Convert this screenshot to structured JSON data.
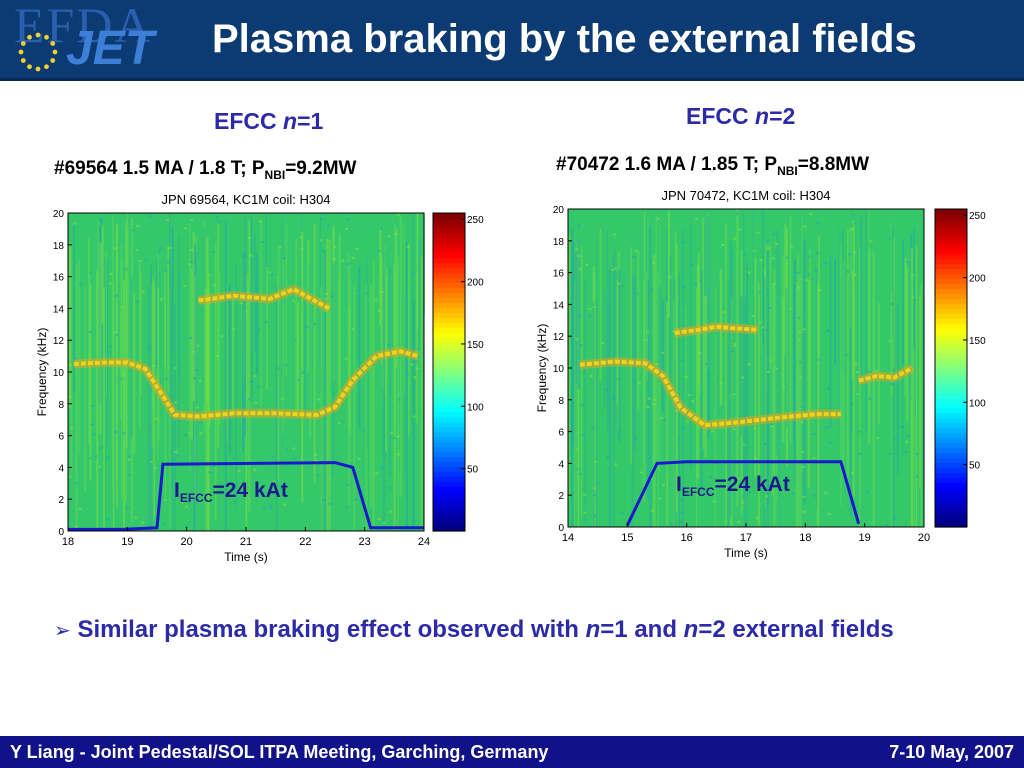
{
  "header": {
    "logo_efda_text": "EFDA",
    "logo_jet_text": "JET",
    "title": "Plasma braking by the external fields"
  },
  "left_panel": {
    "heading_prefix": "EFCC ",
    "heading_var": "n",
    "heading_suffix": "=1",
    "shot_prefix": "#69564 1.5 MA / 1.8 T; P",
    "shot_sub": "NBI",
    "shot_suffix": "=9.2MW",
    "efcc_label_main": "I",
    "efcc_label_sub": "EFCC",
    "efcc_label_suffix": "=24 kAt"
  },
  "right_panel": {
    "heading_prefix": "EFCC ",
    "heading_var": "n",
    "heading_suffix": "=2",
    "shot_prefix": "#70472 1.6 MA / 1.85 T; P",
    "shot_sub": "NBI",
    "shot_suffix": "=8.8MW",
    "efcc_label_main": "I",
    "efcc_label_sub": "EFCC",
    "efcc_label_suffix": "=24 kAt"
  },
  "chart_data": [
    {
      "type": "heatmap",
      "title": "JPN 69564, KC1M coil: H304",
      "xlabel": "Time (s)",
      "ylabel": "Frequency (kHz)",
      "xlim": [
        18,
        24
      ],
      "ylim": [
        0,
        20
      ],
      "xticks": [
        18,
        19,
        20,
        21,
        22,
        23,
        24
      ],
      "yticks": [
        0,
        2,
        4,
        6,
        8,
        10,
        12,
        14,
        16,
        18,
        20
      ],
      "colorbar": {
        "ticks": [
          50,
          100,
          150,
          200,
          250
        ],
        "range": [
          0,
          255
        ]
      },
      "series": [
        {
          "x": [
            18.1,
            18.6,
            19.0,
            19.3,
            19.6,
            19.8,
            20.2,
            20.8,
            21.5,
            22.2,
            22.5,
            22.8,
            23.2,
            23.6,
            23.9
          ],
          "y": [
            10.5,
            10.6,
            10.6,
            10.2,
            8.5,
            7.3,
            7.2,
            7.4,
            7.4,
            7.3,
            7.8,
            9.5,
            11.0,
            11.3,
            11.0
          ]
        },
        {
          "x": [
            20.2,
            20.8,
            21.4,
            21.8,
            22.1,
            22.4
          ],
          "y": [
            14.5,
            14.8,
            14.6,
            15.2,
            14.6,
            14.0
          ]
        },
        {
          "x": [
            18.0,
            18.9,
            19.5,
            19.6,
            22.5,
            22.8,
            23.1,
            24.0
          ],
          "y": [
            0.1,
            0.1,
            0.2,
            4.2,
            4.3,
            4.0,
            0.2,
            0.2
          ],
          "color": "#1a1acc"
        }
      ]
    },
    {
      "type": "heatmap",
      "title": "JPN 70472, KC1M coil: H304",
      "xlabel": "Time (s)",
      "ylabel": "Frequency (kHz)",
      "xlim": [
        14,
        20
      ],
      "ylim": [
        0,
        20
      ],
      "xticks": [
        14,
        15,
        16,
        17,
        18,
        19,
        20
      ],
      "yticks": [
        0,
        2,
        4,
        6,
        8,
        10,
        12,
        14,
        16,
        18,
        20
      ],
      "colorbar": {
        "ticks": [
          50,
          100,
          150,
          200,
          250
        ],
        "range": [
          0,
          255
        ]
      },
      "series": [
        {
          "x": [
            14.2,
            14.8,
            15.3,
            15.6,
            15.9,
            16.3,
            16.9,
            17.6,
            18.2,
            18.6
          ],
          "y": [
            10.2,
            10.4,
            10.3,
            9.5,
            7.5,
            6.4,
            6.6,
            6.9,
            7.1,
            7.1
          ]
        },
        {
          "x": [
            18.9,
            19.2,
            19.5,
            19.8
          ],
          "y": [
            9.2,
            9.5,
            9.4,
            10.0
          ]
        },
        {
          "x": [
            15.8,
            16.2,
            16.5,
            16.8,
            17.2
          ],
          "y": [
            12.2,
            12.4,
            12.6,
            12.5,
            12.4
          ]
        },
        {
          "x": [
            15.0,
            15.5,
            16.0,
            18.6,
            18.9
          ],
          "y": [
            0.1,
            4.0,
            4.1,
            4.1,
            0.2
          ],
          "color": "#1a1acc"
        }
      ]
    }
  ]
}
